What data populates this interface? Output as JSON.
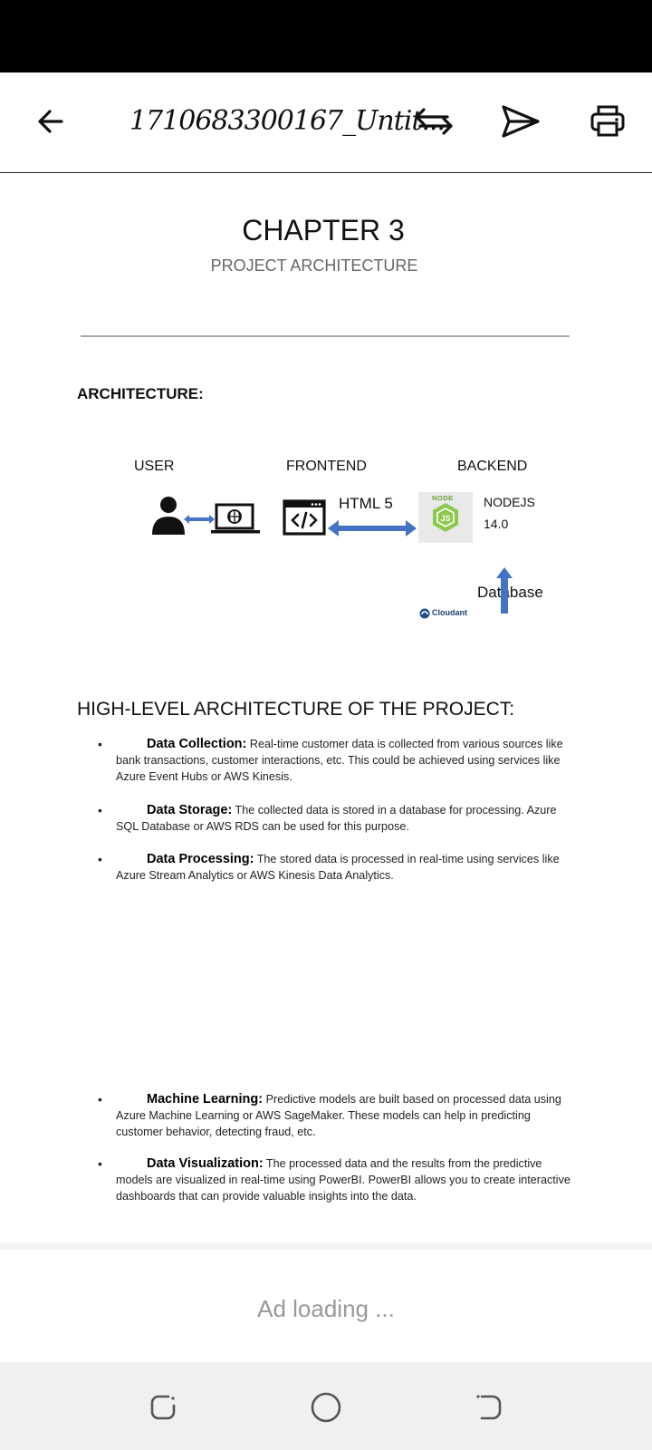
{
  "topbar": {
    "title": "1710683300167_Untit...",
    "back_icon": "arrow-left-icon",
    "swap_icon": "swap-arrows-icon",
    "send_icon": "send-icon",
    "print_icon": "printer-icon"
  },
  "document": {
    "chapter_title": "CHAPTER 3",
    "chapter_subtitle": "PROJECT ARCHITECTURE",
    "architecture_heading": "ARCHITECTURE:",
    "diagram": {
      "user_label": "USER",
      "frontend_label": "FRONTEND",
      "backend_label": "BACKEND",
      "html_label": "HTML 5",
      "nodejs_label": "NODEJS",
      "nodejs_version": "14.0",
      "node_logo_text": "NODE",
      "database_label": "Database",
      "cloudant_label": "Cloudant"
    },
    "high_level_heading": "HIGH-LEVEL ARCHITECTURE OF THE PROJECT:",
    "bullets": [
      {
        "title": "Data Collection:",
        "text": " Real-time customer data is collected from various sources like bank transactions, customer interactions, etc. This could be achieved using services like Azure Event Hubs or AWS Kinesis."
      },
      {
        "title": "Data Storage:",
        "text": " The collected data is stored in a database for processing. Azure SQL Database or AWS RDS can be used for this purpose."
      },
      {
        "title": "Data Processing:",
        "text": " The stored data is processed in real-time using services like Azure Stream Analytics or AWS Kinesis Data Analytics."
      },
      {
        "title": "Machine Learning:",
        "text": " Predictive models are built based on processed data using Azure Machine Learning or AWS SageMaker. These models can help in predicting customer behavior, detecting fraud, etc."
      },
      {
        "title": "Data Visualization:",
        "text": " The processed data and the results from the predictive models are visualized in real-time using PowerBI. PowerBI allows you to create interactive dashboards that can provide valuable insights into the data."
      }
    ]
  },
  "ad": {
    "text": "Ad loading ..."
  },
  "navbar": {
    "recents_icon": "recents-icon",
    "home_icon": "home-circle-icon",
    "back_icon": "nav-back-icon"
  },
  "colors": {
    "arrow_blue": "#4472c4",
    "node_green": "#8cc84b"
  }
}
